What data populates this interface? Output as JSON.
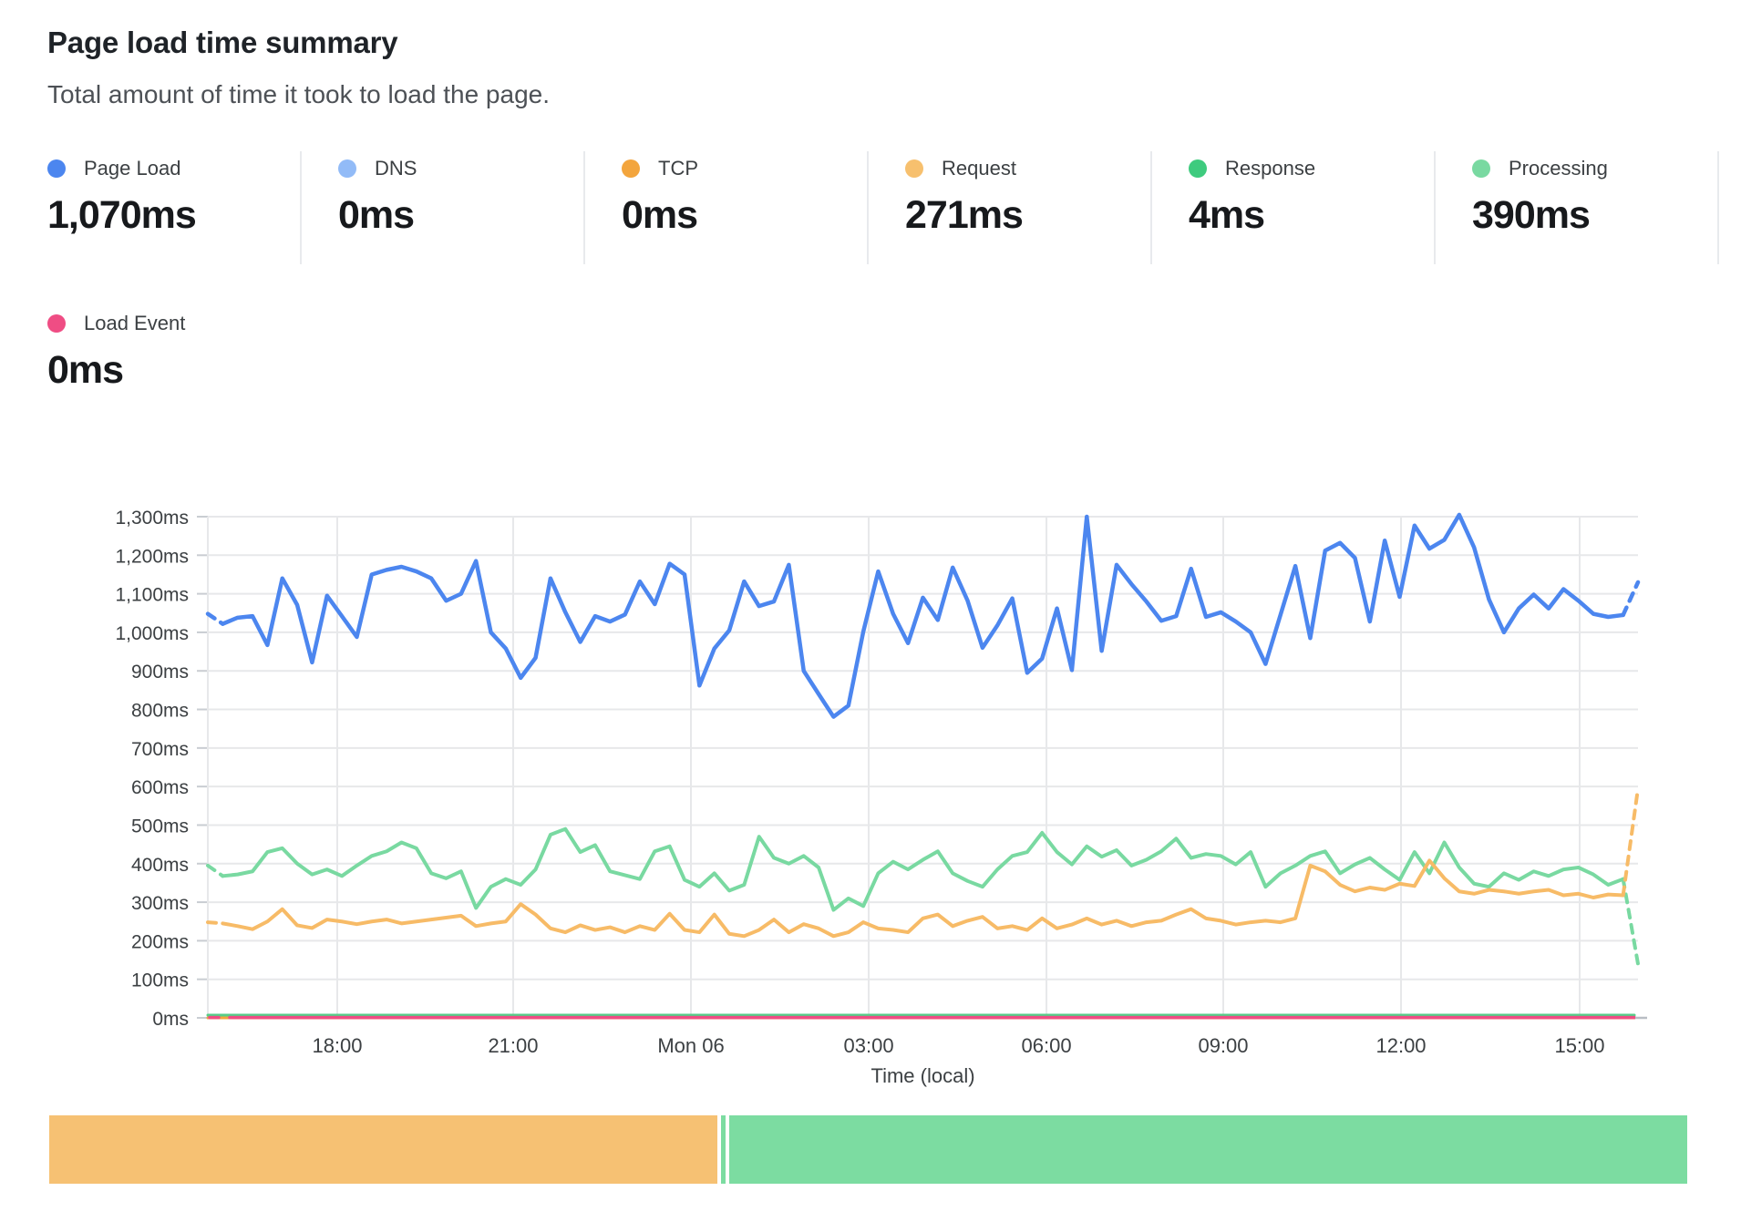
{
  "panel": {
    "title": "Page load time summary",
    "subtitle": "Total amount of time it took to load the page."
  },
  "summary_stats": {
    "row1": [
      {
        "label": "Page Load",
        "value": "1,070ms",
        "color": "#4c86ef"
      },
      {
        "label": "DNS",
        "value": "0ms",
        "color": "#92bbf7"
      },
      {
        "label": "TCP",
        "value": "0ms",
        "color": "#f3a53d"
      },
      {
        "label": "Request",
        "value": "271ms",
        "color": "#f7c06e"
      },
      {
        "label": "Response",
        "value": "4ms",
        "color": "#3ecb7e"
      },
      {
        "label": "Processing",
        "value": "390ms",
        "color": "#79d9a1"
      }
    ],
    "row2": [
      {
        "label": "Load Event",
        "value": "0ms",
        "color": "#ef4d84"
      }
    ]
  },
  "chart_data": {
    "type": "line",
    "title": "Page load time summary",
    "xlabel": "Time (local)",
    "ylabel": "",
    "unit": "ms",
    "ylim": [
      0,
      1300
    ],
    "grid": true,
    "colors": {
      "gridline": "#e7e8ea",
      "tick": "#c9cdd2",
      "axis_text": "#3c4043",
      "end_cap": "#b9bec4"
    },
    "y_axis": {
      "max": 1300,
      "step": 100,
      "labels": [
        "1,300ms",
        "1,200ms",
        "1,100ms",
        "1,000ms",
        "900ms",
        "800ms",
        "700ms",
        "600ms",
        "500ms",
        "400ms",
        "300ms",
        "200ms",
        "100ms",
        "0ms"
      ]
    },
    "x_axis": {
      "title": "Time (local)",
      "ticks": [
        {
          "label": "18:00",
          "f": 0.0905
        },
        {
          "label": "21:00",
          "f": 0.2135
        },
        {
          "label": "Mon 06",
          "f": 0.3378
        },
        {
          "label": "03:00",
          "f": 0.4621
        },
        {
          "label": "06:00",
          "f": 0.5864
        },
        {
          "label": "09:00",
          "f": 0.71
        },
        {
          "label": "12:00",
          "f": 0.8343
        },
        {
          "label": "15:00",
          "f": 0.9592
        }
      ]
    },
    "series": [
      {
        "id": "dns",
        "name": "DNS",
        "color": "#92bbf7",
        "width": 3,
        "constant": 0
      },
      {
        "id": "tcp",
        "name": "TCP",
        "color": "#f3a53d",
        "width": 3,
        "constant": 0
      },
      {
        "id": "page_load",
        "name": "Page Load",
        "color": "#4c86ef",
        "width": 4.5,
        "start_dash": true,
        "end_dash": true,
        "end_value": 1130,
        "values": [
          1048,
          1022,
          1038,
          1042,
          967,
          1140,
          1071,
          922,
          1095,
          1042,
          988,
          1150,
          1162,
          1170,
          1158,
          1140,
          1082,
          1100,
          1185,
          1000,
          958,
          882,
          934,
          1140,
          1052,
          975,
          1042,
          1028,
          1046,
          1132,
          1073,
          1178,
          1150,
          862,
          958,
          1005,
          1132,
          1068,
          1080,
          1175,
          900,
          840,
          781,
          810,
          1002,
          1158,
          1048,
          972,
          1090,
          1032,
          1168,
          1082,
          960,
          1018,
          1088,
          895,
          932,
          1062,
          902,
          1300,
          952,
          1175,
          1125,
          1080,
          1030,
          1042,
          1165,
          1040,
          1052,
          1028,
          1000,
          918,
          1045,
          1172,
          985,
          1212,
          1232,
          1193,
          1028,
          1238,
          1092,
          1277,
          1217,
          1240,
          1305,
          1220,
          1085,
          1000,
          1062,
          1098,
          1062,
          1112,
          1082,
          1048,
          1040,
          1045
        ]
      },
      {
        "id": "processing",
        "name": "Processing",
        "color": "#79d9a1",
        "width": 4,
        "start_dash": true,
        "end_dash": true,
        "end_value": 140,
        "values": [
          395,
          368,
          372,
          380,
          430,
          440,
          400,
          372,
          385,
          368,
          395,
          420,
          432,
          455,
          440,
          375,
          362,
          380,
          285,
          340,
          360,
          345,
          385,
          475,
          490,
          430,
          448,
          380,
          370,
          360,
          432,
          445,
          358,
          340,
          375,
          330,
          345,
          470,
          415,
          400,
          420,
          390,
          280,
          310,
          290,
          375,
          405,
          385,
          410,
          432,
          375,
          355,
          340,
          385,
          420,
          430,
          480,
          430,
          398,
          445,
          418,
          435,
          395,
          410,
          432,
          465,
          415,
          425,
          420,
          398,
          430,
          340,
          375,
          395,
          420,
          432,
          375,
          398,
          415,
          385,
          358,
          430,
          375,
          455,
          390,
          348,
          340,
          375,
          358,
          380,
          368,
          385,
          390,
          372,
          345,
          360
        ]
      },
      {
        "id": "request",
        "name": "Request",
        "color": "#f7bb67",
        "width": 4,
        "start_dash": true,
        "end_dash": true,
        "end_value": 595,
        "values": [
          248,
          245,
          238,
          230,
          250,
          282,
          240,
          233,
          255,
          250,
          243,
          250,
          255,
          245,
          250,
          255,
          260,
          265,
          238,
          245,
          250,
          295,
          268,
          232,
          222,
          240,
          228,
          235,
          222,
          238,
          228,
          270,
          228,
          222,
          268,
          218,
          212,
          228,
          255,
          222,
          243,
          232,
          212,
          222,
          248,
          232,
          228,
          222,
          258,
          268,
          238,
          252,
          262,
          232,
          238,
          228,
          258,
          232,
          242,
          258,
          242,
          252,
          238,
          248,
          252,
          268,
          282,
          258,
          252,
          242,
          248,
          252,
          248,
          258,
          395,
          380,
          345,
          328,
          338,
          332,
          348,
          342,
          408,
          362,
          328,
          322,
          332,
          328,
          322,
          328,
          332,
          318,
          322,
          312,
          320,
          318
        ]
      },
      {
        "id": "response",
        "name": "Response",
        "color": "#56cd88",
        "width": 3,
        "constant": 7
      },
      {
        "id": "load_event",
        "name": "Load Event",
        "color": "#ef4d84",
        "width": 3.5,
        "constant": 1,
        "start_dash": true
      }
    ]
  },
  "timeline_bar": {
    "segments": [
      {
        "status": "degraded",
        "color": "#f6c173",
        "width_pct": 40.72
      },
      {
        "status": "operational",
        "color": "#7cdca1",
        "width_pct": 0.28
      },
      {
        "status": "operational",
        "color": "#7cdca1",
        "width_pct": 58.4
      }
    ]
  }
}
